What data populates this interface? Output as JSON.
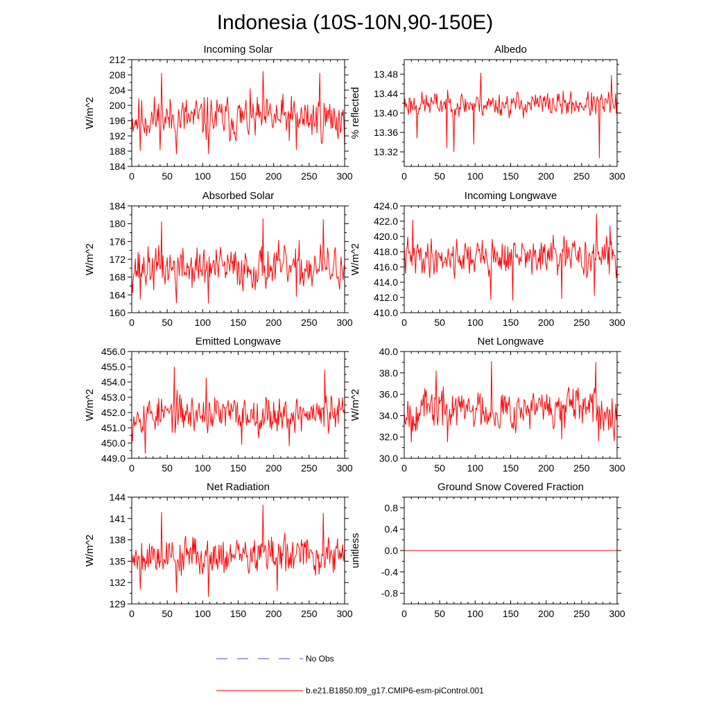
{
  "figure": {
    "title": "Indonesia (10S-10N,90-150E)"
  },
  "legend": {
    "items": [
      {
        "label": "No Obs",
        "color": "#3b4cc0",
        "style": "dashed"
      },
      {
        "label": "b.e21.B1850.f09_g17.CMIP6-esm-piControl.001",
        "color": "#ff0000",
        "style": "solid"
      }
    ]
  },
  "chart_data": [
    {
      "type": "line",
      "title": "Incoming Solar",
      "xlabel": "",
      "ylabel": "W/m^2",
      "xlim": [
        0,
        300
      ],
      "ylim": [
        184,
        212
      ],
      "xticks": [
        0,
        50,
        100,
        150,
        200,
        250,
        300
      ],
      "xtick_labels": [
        "0",
        "50",
        "100",
        "150",
        "200",
        "250",
        "300"
      ],
      "yticks": [
        184,
        188,
        192,
        196,
        200,
        204,
        208,
        212
      ],
      "ytick_labels": [
        "184",
        "188",
        "192",
        "196",
        "200",
        "204",
        "208",
        "212"
      ],
      "series": [
        {
          "name": "b.e21.B1850.f09_g17.CMIP6-esm-piControl.001",
          "color": "#ff0000",
          "gen": {
            "mean": 196.5,
            "amp": 4.2,
            "min": 187,
            "max": 209.5,
            "seed": 11,
            "peaks": [
              [
                42,
                208.5
              ],
              [
                185,
                209
              ],
              [
                265,
                208.5
              ],
              [
                63,
                187.2
              ],
              [
                108,
                187.3
              ],
              [
                232,
                188.3
              ],
              [
                12,
                188.1
              ]
            ]
          }
        }
      ]
    },
    {
      "type": "line",
      "title": "Albedo",
      "xlabel": "",
      "ylabel": "% reflected",
      "xlim": [
        0,
        300
      ],
      "ylim": [
        13.29,
        13.51
      ],
      "xticks": [
        0,
        50,
        100,
        150,
        200,
        250,
        300
      ],
      "xtick_labels": [
        "0",
        "50",
        "100",
        "150",
        "200",
        "250",
        "300"
      ],
      "yticks": [
        13.32,
        13.36,
        13.4,
        13.44,
        13.48
      ],
      "ytick_labels": [
        "13.32",
        "13.36",
        "13.40",
        "13.44",
        "13.48"
      ],
      "series": [
        {
          "name": "b.e21.B1850.f09_g17.CMIP6-esm-piControl.001",
          "color": "#ff0000",
          "gen": {
            "mean": 13.418,
            "amp": 0.018,
            "min": 13.305,
            "max": 13.485,
            "seed": 23,
            "peaks": [
              [
                108,
                13.483
              ],
              [
                292,
                13.478
              ],
              [
                275,
                13.307
              ],
              [
                70,
                13.32
              ],
              [
                98,
                13.335
              ],
              [
                18,
                13.348
              ],
              [
                60,
                13.328
              ]
            ]
          }
        }
      ]
    },
    {
      "type": "line",
      "title": "Absorbed Solar",
      "xlabel": "",
      "ylabel": "W/m^2",
      "xlim": [
        0,
        300
      ],
      "ylim": [
        160,
        184
      ],
      "xticks": [
        0,
        50,
        100,
        150,
        200,
        250,
        300
      ],
      "xtick_labels": [
        "0",
        "50",
        "100",
        "150",
        "200",
        "250",
        "300"
      ],
      "yticks": [
        160,
        164,
        168,
        172,
        176,
        180,
        184
      ],
      "ytick_labels": [
        "160",
        "164",
        "168",
        "172",
        "176",
        "180",
        "184"
      ],
      "series": [
        {
          "name": "b.e21.B1850.f09_g17.CMIP6-esm-piControl.001",
          "color": "#ff0000",
          "gen": {
            "mean": 170,
            "amp": 3.4,
            "min": 162,
            "max": 181.5,
            "seed": 37,
            "peaks": [
              [
                42,
                180.5
              ],
              [
                185,
                181.2
              ],
              [
                270,
                181
              ],
              [
                63,
                162.2
              ],
              [
                108,
                162.1
              ],
              [
                232,
                163.6
              ],
              [
                12,
                163
              ]
            ]
          }
        }
      ]
    },
    {
      "type": "line",
      "title": "Incoming Longwave",
      "xlabel": "",
      "ylabel": "W/m^2",
      "xlim": [
        0,
        300
      ],
      "ylim": [
        410,
        424
      ],
      "xticks": [
        0,
        50,
        100,
        150,
        200,
        250,
        300
      ],
      "xtick_labels": [
        "0",
        "50",
        "100",
        "150",
        "200",
        "250",
        "300"
      ],
      "yticks": [
        410,
        412,
        414,
        416,
        418,
        420,
        422,
        424
      ],
      "ytick_labels": [
        "410.0",
        "412.0",
        "414.0",
        "416.0",
        "418.0",
        "420.0",
        "422.0",
        "424.0"
      ],
      "series": [
        {
          "name": "b.e21.B1850.f09_g17.CMIP6-esm-piControl.001",
          "color": "#ff0000",
          "gen": {
            "mean": 417.3,
            "amp": 1.7,
            "min": 411.5,
            "max": 423.2,
            "seed": 41,
            "peaks": [
              [
                271,
                423
              ],
              [
                12,
                422.2
              ],
              [
                290,
                421.4
              ],
              [
                122,
                411.7
              ],
              [
                153,
                411.6
              ],
              [
                222,
                411.8
              ],
              [
                268,
                412.2
              ]
            ]
          }
        }
      ]
    },
    {
      "type": "line",
      "title": "Emitted Longwave",
      "xlabel": "",
      "ylabel": "W/m^2",
      "xlim": [
        0,
        300
      ],
      "ylim": [
        449,
        456
      ],
      "xticks": [
        0,
        50,
        100,
        150,
        200,
        250,
        300
      ],
      "xtick_labels": [
        "0",
        "50",
        "100",
        "150",
        "200",
        "250",
        "300"
      ],
      "yticks": [
        449,
        450,
        451,
        452,
        453,
        454,
        455,
        456
      ],
      "ytick_labels": [
        "449.0",
        "450.0",
        "451.0",
        "452.0",
        "453.0",
        "454.0",
        "455.0",
        "456.0"
      ],
      "series": [
        {
          "name": "b.e21.B1850.f09_g17.CMIP6-esm-piControl.001",
          "color": "#ff0000",
          "gen": {
            "mean": 451.9,
            "amp": 0.85,
            "min": 449.2,
            "max": 455.1,
            "seed": 53,
            "peaks": [
              [
                60,
                455
              ],
              [
                272,
                454.8
              ],
              [
                19,
                449.3
              ],
              [
                1,
                450.1
              ],
              [
                222,
                449.8
              ],
              [
                155,
                449.9
              ],
              [
                105,
                454.3
              ]
            ]
          }
        }
      ]
    },
    {
      "type": "line",
      "title": "Net Longwave",
      "xlabel": "",
      "ylabel": "W/m^2",
      "xlim": [
        0,
        300
      ],
      "ylim": [
        30,
        40
      ],
      "xticks": [
        0,
        50,
        100,
        150,
        200,
        250,
        300
      ],
      "xtick_labels": [
        "0",
        "50",
        "100",
        "150",
        "200",
        "250",
        "300"
      ],
      "yticks": [
        30,
        32,
        34,
        36,
        38,
        40
      ],
      "ytick_labels": [
        "30.0",
        "32.0",
        "34.0",
        "36.0",
        "38.0",
        "40.0"
      ],
      "series": [
        {
          "name": "b.e21.B1850.f09_g17.CMIP6-esm-piControl.001",
          "color": "#ff0000",
          "gen": {
            "mean": 34.6,
            "amp": 1.35,
            "min": 31.4,
            "max": 39.2,
            "seed": 67,
            "peaks": [
              [
                123,
                39.1
              ],
              [
                270,
                39
              ],
              [
                61,
                31.5
              ],
              [
                274,
                31.6
              ],
              [
                10,
                31.5
              ],
              [
                222,
                31.8
              ],
              [
                45,
                38.2
              ]
            ]
          }
        }
      ]
    },
    {
      "type": "line",
      "title": "Net Radiation",
      "xlabel": "",
      "ylabel": "W/m^2",
      "xlim": [
        0,
        300
      ],
      "ylim": [
        129,
        144
      ],
      "xticks": [
        0,
        50,
        100,
        150,
        200,
        250,
        300
      ],
      "xtick_labels": [
        "0",
        "50",
        "100",
        "150",
        "200",
        "250",
        "300"
      ],
      "yticks": [
        129,
        132,
        135,
        138,
        141,
        144
      ],
      "ytick_labels": [
        "129",
        "132",
        "135",
        "138",
        "141",
        "144"
      ],
      "series": [
        {
          "name": "b.e21.B1850.f09_g17.CMIP6-esm-piControl.001",
          "color": "#ff0000",
          "gen": {
            "mean": 135.8,
            "amp": 1.9,
            "min": 130,
            "max": 143,
            "seed": 79,
            "peaks": [
              [
                185,
                142.9
              ],
              [
                42,
                141.9
              ],
              [
                270,
                141.8
              ],
              [
                108,
                130
              ],
              [
                63,
                130.6
              ],
              [
                205,
                130.8
              ],
              [
                12,
                131
              ]
            ]
          }
        }
      ]
    },
    {
      "type": "line",
      "title": "Ground Snow Covered Fraction",
      "xlabel": "",
      "ylabel": "unitless",
      "xlim": [
        0,
        300
      ],
      "ylim": [
        -1.0,
        1.0
      ],
      "xticks": [
        0,
        50,
        100,
        150,
        200,
        250,
        300
      ],
      "xtick_labels": [
        "0",
        "50",
        "100",
        "150",
        "200",
        "250",
        "300"
      ],
      "yticks": [
        -0.8,
        -0.4,
        0.0,
        0.4,
        0.8
      ],
      "ytick_labels": [
        "-0.8",
        "-0.4",
        "0.0",
        "0.4",
        "0.8"
      ],
      "series": [
        {
          "name": "b.e21.B1850.f09_g17.CMIP6-esm-piControl.001",
          "color": "#ff0000",
          "constant": 0.0
        }
      ]
    }
  ]
}
